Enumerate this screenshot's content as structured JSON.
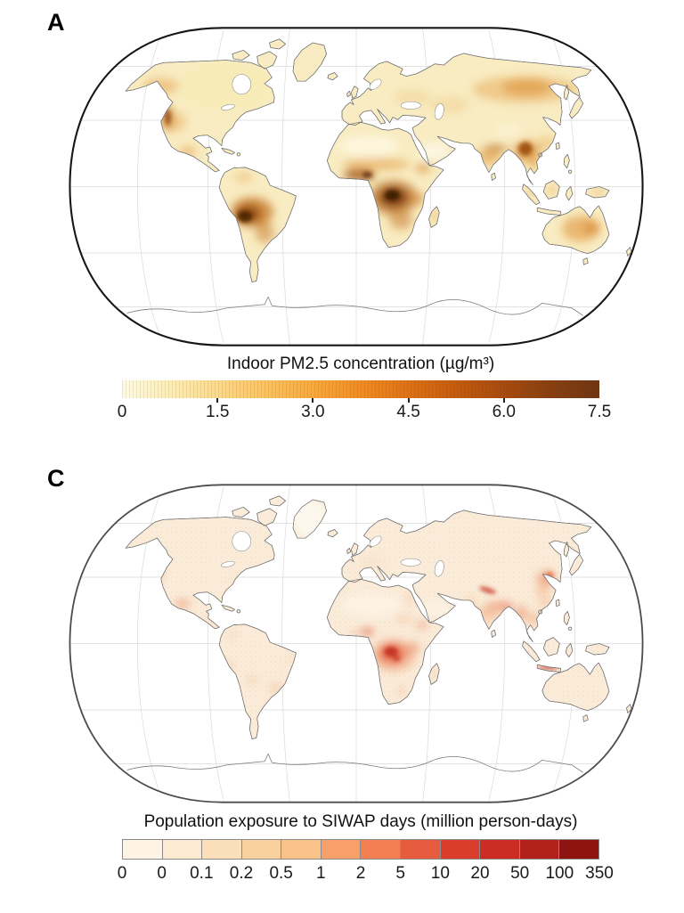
{
  "panelA": {
    "label": "A",
    "map_alt": "World map (Robinson projection) shaded by indoor PM2.5 concentration; darkest over the Amazon basin, Congo basin, West Africa, Myanmar and Siberia",
    "colorbar": {
      "title": "Indoor PM2.5 concentration (µg/m³)",
      "ticks": [
        "0",
        "1.5",
        "3.0",
        "4.5",
        "6.0",
        "7.5"
      ],
      "min": 0,
      "max": 7.5,
      "gradient_stops": [
        "#fefbe2",
        "#fdedb6",
        "#fcd98c",
        "#fbc262",
        "#f7a93e",
        "#ef8c24",
        "#dd7117",
        "#c25c10",
        "#a54b10",
        "#874012",
        "#6f3512"
      ]
    }
  },
  "panelC": {
    "label": "C",
    "map_alt": "World map (Robinson projection) shaded by population exposure to SIWAP days; highest in the Congo basin, South and Southeast Asia and eastern China",
    "colorbar": {
      "title": "Population exposure to SIWAP days (million person-days)",
      "ticks": [
        "0",
        "0",
        "0.1",
        "0.2",
        "0.5",
        "1",
        "2",
        "5",
        "10",
        "20",
        "50",
        "100",
        "350"
      ],
      "segment_colors": [
        "#fdf4e5",
        "#fcebd2",
        "#fadfba",
        "#f8d19e",
        "#f9c289",
        "#f7a06a",
        "#f28052",
        "#e75b3e",
        "#da3d2c",
        "#cb2c23",
        "#b2201c",
        "#8d1411"
      ]
    }
  }
}
